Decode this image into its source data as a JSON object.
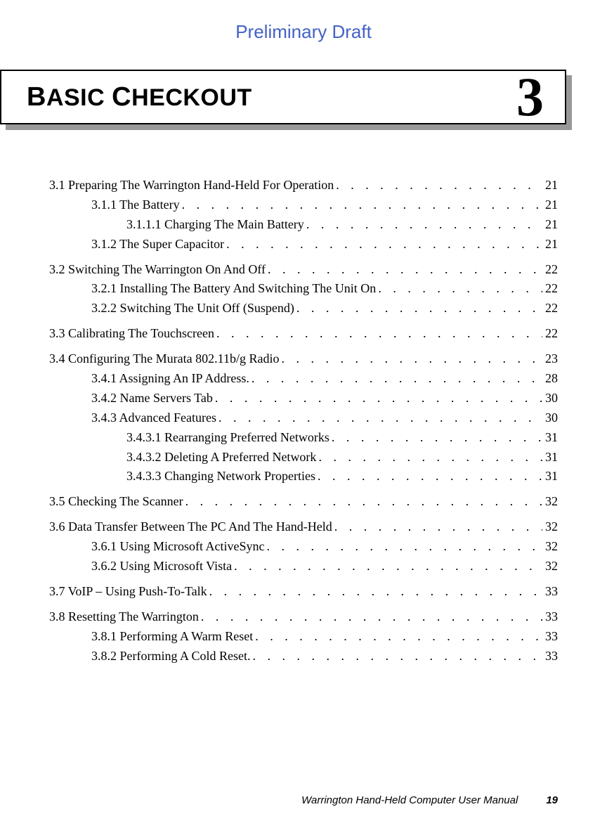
{
  "draft_label": "Preliminary Draft",
  "chapter": {
    "title_html": "BASIC CHECKOUT",
    "number": "3"
  },
  "toc": [
    {
      "level": 0,
      "label": "3.1 Preparing The Warrington Hand-Held For Operation",
      "page": "21",
      "group": true
    },
    {
      "level": 1,
      "label": "3.1.1 The Battery",
      "page": "21"
    },
    {
      "level": 2,
      "label": "3.1.1.1 Charging The Main Battery",
      "page": "21"
    },
    {
      "level": 1,
      "label": "3.1.2 The Super Capacitor",
      "page": "21"
    },
    {
      "level": 0,
      "label": "3.2 Switching The Warrington On And Off",
      "page": "22",
      "group": true
    },
    {
      "level": 1,
      "label": "3.2.1 Installing The Battery And Switching The Unit On",
      "page": "22"
    },
    {
      "level": 1,
      "label": "3.2.2 Switching The Unit Off (Suspend)",
      "page": "22"
    },
    {
      "level": 0,
      "label": "3.3 Calibrating The Touchscreen",
      "page": "22",
      "group": true
    },
    {
      "level": 0,
      "label": "3.4 Configuring The Murata 802.11b/g Radio",
      "page": "23",
      "group": true
    },
    {
      "level": 1,
      "label": "3.4.1 Assigning An IP Address.",
      "page": "28"
    },
    {
      "level": 1,
      "label": "3.4.2 Name Servers Tab",
      "page": "30"
    },
    {
      "level": 1,
      "label": "3.4.3 Advanced Features",
      "page": "30"
    },
    {
      "level": 2,
      "label": "3.4.3.1 Rearranging Preferred Networks",
      "page": "31"
    },
    {
      "level": 2,
      "label": "3.4.3.2 Deleting A Preferred Network",
      "page": "31"
    },
    {
      "level": 2,
      "label": "3.4.3.3 Changing Network Properties",
      "page": "31"
    },
    {
      "level": 0,
      "label": "3.5 Checking The Scanner",
      "page": "32",
      "group": true
    },
    {
      "level": 0,
      "label": "3.6 Data Transfer Between The PC And The Hand-Held",
      "page": "32",
      "group": true
    },
    {
      "level": 1,
      "label": "3.6.1 Using Microsoft ActiveSync",
      "page": "32"
    },
    {
      "level": 1,
      "label": "3.6.2 Using Microsoft Vista",
      "page": "32"
    },
    {
      "level": 0,
      "label": "3.7 VoIP – Using Push-To-Talk",
      "page": "33",
      "group": true
    },
    {
      "level": 0,
      "label": "3.8 Resetting The Warrington",
      "page": "33",
      "group": true
    },
    {
      "level": 1,
      "label": "3.8.1 Performing A Warm Reset",
      "page": "33"
    },
    {
      "level": 1,
      "label": "3.8.2 Performing A Cold Reset.",
      "page": "33"
    }
  ],
  "footer": {
    "manual_title": "Warrington Hand-Held Computer User Manual",
    "page_number": "19"
  },
  "colors": {
    "draft_color": "#4462c4",
    "text_color": "#000000",
    "shadow_color": "#999999",
    "background": "#ffffff"
  },
  "typography": {
    "body_font": "Georgia, Times New Roman, serif",
    "heading_font": "Arial, Helvetica, sans-serif",
    "draft_fontsize": 26,
    "chapter_title_fontsize": 34,
    "chapter_number_fontsize": 78,
    "toc_fontsize": 18,
    "footer_fontsize": 15
  }
}
